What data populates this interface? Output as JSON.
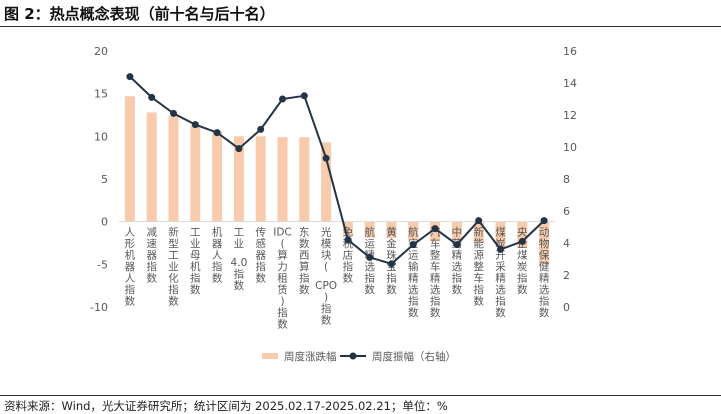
{
  "title": "图 2：热点概念表现（前十名与后十名）",
  "footer": "资料来源：Wind，光大证券研究所；统计区间为 2025.02.17-2025.02.21；单位：%",
  "chart_data": {
    "type": "bar+line",
    "categories": [
      "人形机器人指数",
      "减速器指数",
      "新型工业化指数",
      "工业母机指数",
      "机器人指数",
      "工业4.0指数",
      "传感器指数",
      "IDC(算力租赁)指数",
      "东数西算指数",
      "光模块(CPO)指数",
      "免税店指数",
      "航运精选指数",
      "黄金珠宝指数",
      "航空运输精选指数",
      "汽车整车精选指数",
      "中药精选指数",
      "新能源整车指数",
      "煤炭开采精选指数",
      "央企煤炭指数",
      "动物保健精选指数"
    ],
    "series": [
      {
        "name": "周度涨跌幅",
        "type": "bar",
        "axis": "left",
        "color": "#F8CBAD",
        "values": [
          14.7,
          12.8,
          12.4,
          11.3,
          10.6,
          10.0,
          10.0,
          9.9,
          9.9,
          9.3,
          -1.7,
          -1.9,
          -1.9,
          -2.1,
          -2.3,
          -2.2,
          -2.5,
          -3.0,
          -3.0,
          -5.0
        ]
      },
      {
        "name": "周度振幅（右轴）",
        "type": "line",
        "axis": "right",
        "color": "#243447",
        "values": [
          14.4,
          13.1,
          12.1,
          11.4,
          10.9,
          9.9,
          11.1,
          13.0,
          13.2,
          9.3,
          4.2,
          3.1,
          2.7,
          3.9,
          4.9,
          3.9,
          5.4,
          3.6,
          4.1,
          5.4
        ]
      }
    ],
    "ylim_left": [
      -10,
      20
    ],
    "yticks_left": [
      "20",
      "15",
      "10",
      "5",
      "0",
      "-5",
      "-10"
    ],
    "ylim_right": [
      0,
      16
    ],
    "yticks_right": [
      "16",
      "14",
      "12",
      "10",
      "8",
      "6",
      "4",
      "2",
      "0"
    ],
    "grid": false,
    "legend_position": "bottom"
  }
}
